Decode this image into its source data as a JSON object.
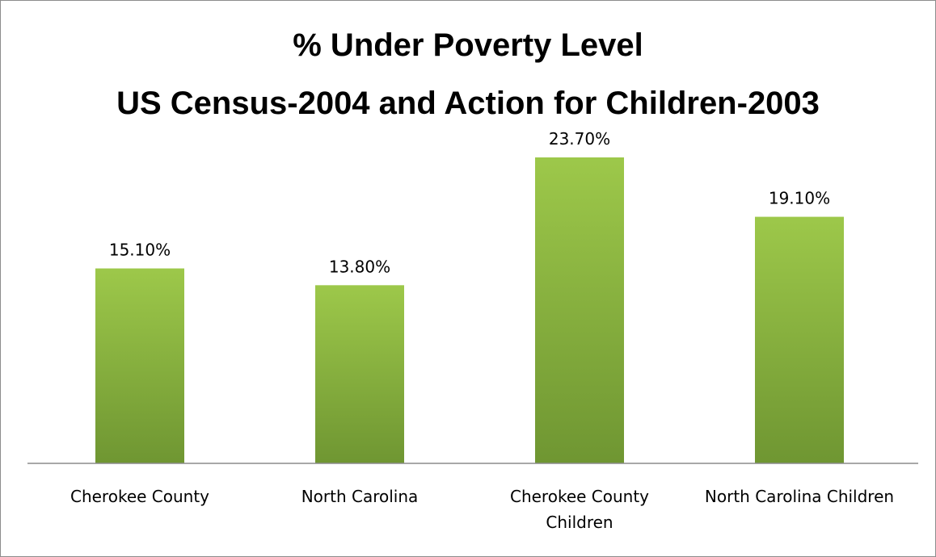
{
  "chart_data": {
    "type": "bar",
    "title": "% Under Poverty Level",
    "subtitle": "US Census-2004 and Action for Children-2003",
    "categories": [
      [
        "Cherokee County"
      ],
      [
        "North Carolina"
      ],
      [
        "Cherokee County",
        "Children"
      ],
      [
        "North Carolina Children"
      ]
    ],
    "values": [
      15.1,
      13.8,
      23.7,
      19.1
    ],
    "data_labels": [
      "15.10%",
      "13.80%",
      "23.70%",
      "19.10%"
    ],
    "xlabel": "",
    "ylabel": "",
    "ylim": [
      0,
      25
    ],
    "grid": false,
    "legend": "none",
    "bar_color_top": "#9dc84a",
    "bar_color_bottom": "#6f9632",
    "axis_color": "#8c8c8c"
  }
}
